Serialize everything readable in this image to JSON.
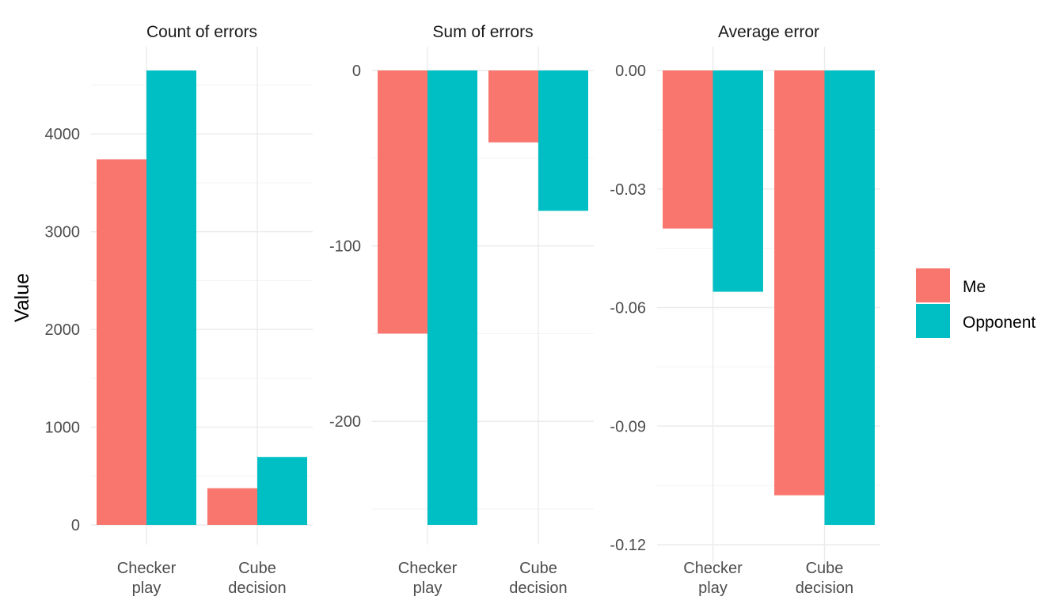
{
  "chart_data": {
    "type": "bar",
    "ylabel": "Value",
    "categories": [
      "Checker\nplay",
      "Cube\ndecision"
    ],
    "legend": {
      "position": "right",
      "items": [
        {
          "name": "Me",
          "color": "#F8766D"
        },
        {
          "name": "Opponent",
          "color": "#00BFC4"
        }
      ]
    },
    "grid": true,
    "facets": [
      {
        "title": "Count of errors",
        "ylim": [
          0,
          4650
        ],
        "yticks": [
          0,
          1000,
          2000,
          3000,
          4000
        ],
        "ytick_labels": [
          "0",
          "1000",
          "2000",
          "3000",
          "4000"
        ],
        "series": [
          {
            "name": "Me",
            "values": [
              3740,
              375
            ]
          },
          {
            "name": "Opponent",
            "values": [
              4650,
              695
            ]
          }
        ]
      },
      {
        "title": "Sum of errors",
        "ylim": [
          -259,
          0
        ],
        "yticks": [
          0,
          -100,
          -200
        ],
        "ytick_labels": [
          "0",
          "-100",
          "-200"
        ],
        "series": [
          {
            "name": "Me",
            "values": [
              -150,
              -41
            ]
          },
          {
            "name": "Opponent",
            "values": [
              -259,
              -80
            ]
          }
        ]
      },
      {
        "title": "Average error",
        "ylim": [
          -0.12,
          0
        ],
        "yticks": [
          0,
          -0.03,
          -0.06,
          -0.09,
          -0.12
        ],
        "ytick_labels": [
          "0.00",
          "-0.03",
          "-0.06",
          "-0.09",
          "-0.12"
        ],
        "series": [
          {
            "name": "Me",
            "values": [
              -0.04,
              -0.1075
            ]
          },
          {
            "name": "Opponent",
            "values": [
              -0.056,
              -0.115
            ]
          }
        ]
      }
    ]
  }
}
